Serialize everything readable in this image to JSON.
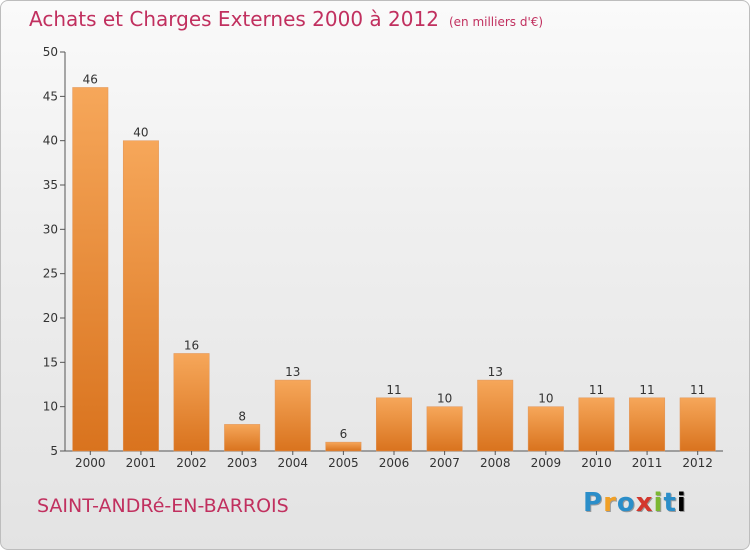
{
  "header": {
    "title": "Achats et Charges Externes 2000 à 2012",
    "subtitle": "(en milliers d'€)"
  },
  "footer": {
    "commune": "SAINT-ANDRé-EN-BARROIS",
    "logo_letters": [
      "P",
      "r",
      "o",
      "x",
      "i",
      "t",
      "i"
    ]
  },
  "colors": {
    "title": "#c1305f",
    "bar_light": "#f6a75a",
    "bar_dark": "#d9731e"
  },
  "chart_data": {
    "type": "bar",
    "categories": [
      "2000",
      "2001",
      "2002",
      "2003",
      "2004",
      "2005",
      "2006",
      "2007",
      "2008",
      "2009",
      "2010",
      "2011",
      "2012"
    ],
    "values": [
      46,
      40,
      16,
      8,
      13,
      6,
      11,
      10,
      13,
      10,
      11,
      11,
      11
    ],
    "data_labels": [
      "46",
      "40",
      "16",
      "8",
      "13",
      "6",
      "11",
      "10",
      "13",
      "10",
      "11",
      "11",
      "11"
    ],
    "yticks": [
      5,
      10,
      15,
      20,
      25,
      30,
      35,
      40,
      45,
      50
    ],
    "ylim": [
      5,
      50
    ],
    "grid": false,
    "xlabel": "",
    "ylabel": ""
  }
}
